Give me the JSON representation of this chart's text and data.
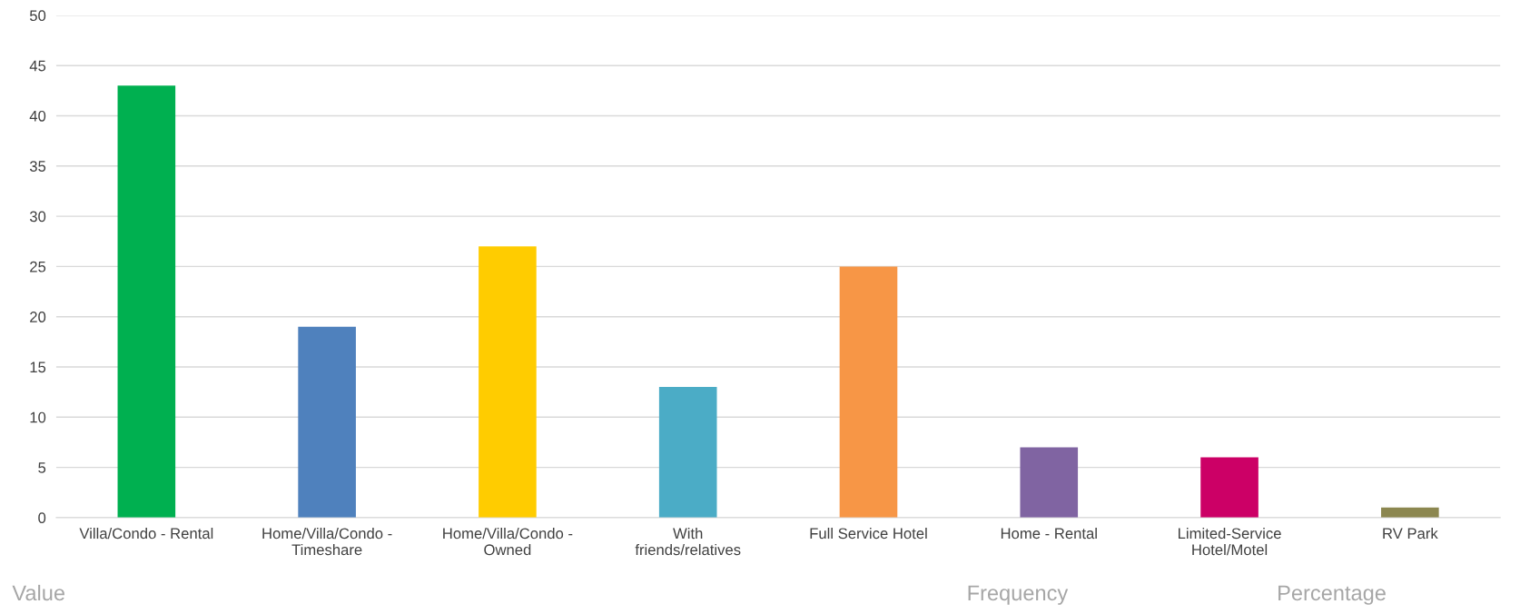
{
  "chart_data": {
    "type": "bar",
    "categories": [
      "Villa/Condo - Rental",
      "Home/Villa/Condo - Timeshare",
      "Home/Villa/Condo - Owned",
      "With friends/relatives",
      "Full Service Hotel",
      "Home - Rental",
      "Limited-Service Hotel/Motel",
      "RV Park"
    ],
    "values": [
      43,
      19,
      27,
      13,
      25,
      7,
      6,
      1
    ],
    "colors": [
      "#00b050",
      "#4f81bd",
      "#ffcc00",
      "#4bacc6",
      "#f79646",
      "#8064a2",
      "#cc0066",
      "#8c8750"
    ],
    "ylim": [
      0,
      50
    ],
    "yticks": [
      0,
      5,
      10,
      15,
      20,
      25,
      30,
      35,
      40,
      45,
      50
    ],
    "grid": "y",
    "legend": false,
    "annotations": [
      "Value",
      "Frequency",
      "Percentage"
    ]
  }
}
